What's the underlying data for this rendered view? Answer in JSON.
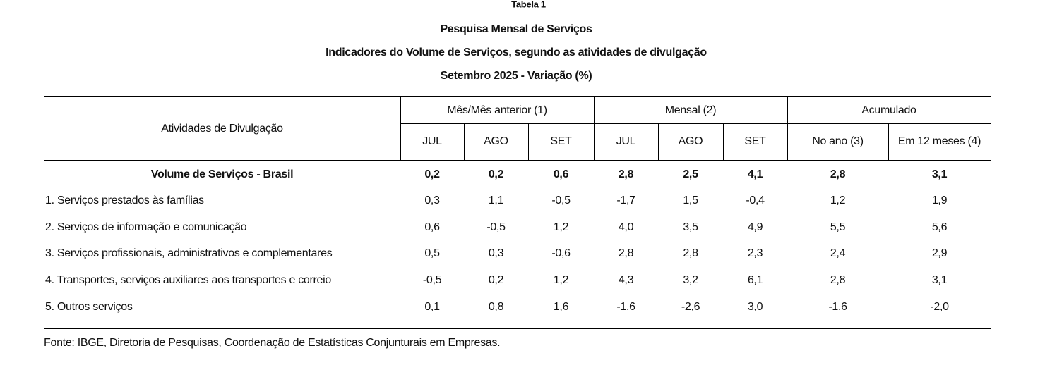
{
  "header": {
    "label": "Tabela 1",
    "title": "Pesquisa Mensal de Serviços",
    "subtitle": "Indicadores do Volume de Serviços, segundo as atividades de divulgação",
    "period": "Setembro 2025 - Variação (%)"
  },
  "table": {
    "row_header": "Atividades de Divulgação",
    "groups": [
      {
        "name": "Mês/Mês anterior (1)",
        "columns": [
          "JUL",
          "AGO",
          "SET"
        ]
      },
      {
        "name": "Mensal (2)",
        "columns": [
          "JUL",
          "AGO",
          "SET"
        ]
      },
      {
        "name": "Acumulado",
        "columns": [
          "No ano (3)",
          "Em 12 meses (4)"
        ]
      }
    ],
    "rows": [
      {
        "label": "Volume de Serviços - Brasil",
        "values": [
          "0,2",
          "0,2",
          "0,6",
          "2,8",
          "2,5",
          "4,1",
          "2,8",
          "3,1"
        ]
      },
      {
        "label": "1. Serviços prestados às famílias",
        "values": [
          "0,3",
          "1,1",
          "-0,5",
          "-1,7",
          "1,5",
          "-0,4",
          "1,2",
          "1,9"
        ]
      },
      {
        "label": "2. Serviços de informação e comunicação",
        "values": [
          "0,6",
          "-0,5",
          "1,2",
          "4,0",
          "3,5",
          "4,9",
          "5,5",
          "5,6"
        ]
      },
      {
        "label": "3. Serviços profissionais, administrativos e complementares",
        "values": [
          "0,5",
          "0,3",
          "-0,6",
          "2,8",
          "2,8",
          "2,3",
          "2,4",
          "2,9"
        ]
      },
      {
        "label": "4. Transportes, serviços auxiliares aos transportes e correio",
        "values": [
          "-0,5",
          "0,2",
          "1,2",
          "4,3",
          "3,2",
          "6,1",
          "2,8",
          "3,1"
        ]
      },
      {
        "label": "5. Outros serviços",
        "values": [
          "0,1",
          "0,8",
          "1,6",
          "-1,6",
          "-2,6",
          "3,0",
          "-1,6",
          "-2,0"
        ]
      }
    ]
  },
  "footer": {
    "source": "Fonte: IBGE, Diretoria de Pesquisas, Coordenação de Estatísticas Conjunturais em Empresas."
  }
}
